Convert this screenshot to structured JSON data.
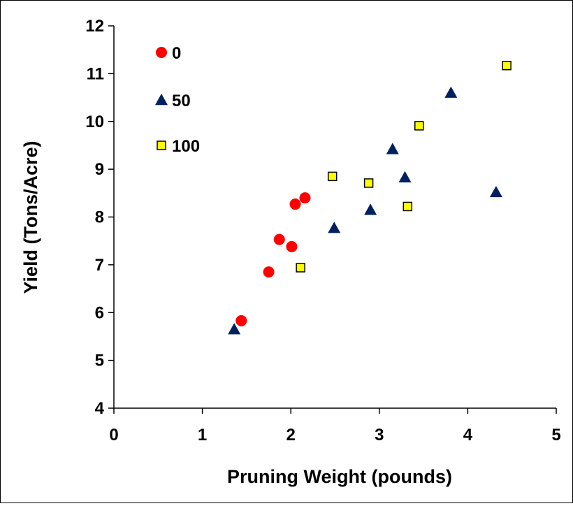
{
  "chart_data": {
    "type": "scatter",
    "title": "",
    "xlabel": "Pruning Weight (pounds)",
    "ylabel": "Yield (Tons/Acre)",
    "xlim": [
      0,
      5
    ],
    "ylim": [
      4,
      12
    ],
    "xticks": [
      "0",
      "1",
      "2",
      "3",
      "4",
      "5"
    ],
    "yticks": [
      "4",
      "5",
      "6",
      "7",
      "8",
      "9",
      "10",
      "11",
      "12"
    ],
    "grid": false,
    "legend_position": "top-left",
    "series": [
      {
        "name": "0",
        "marker": "circle",
        "color": "#ff0000",
        "points": [
          {
            "x": 1.44,
            "y": 5.83
          },
          {
            "x": 1.75,
            "y": 6.85
          },
          {
            "x": 1.87,
            "y": 7.53
          },
          {
            "x": 2.01,
            "y": 7.38
          },
          {
            "x": 2.05,
            "y": 8.27
          },
          {
            "x": 2.16,
            "y": 8.4
          }
        ]
      },
      {
        "name": "50",
        "marker": "triangle",
        "color": "#002060",
        "points": [
          {
            "x": 1.36,
            "y": 5.65
          },
          {
            "x": 2.49,
            "y": 7.77
          },
          {
            "x": 2.9,
            "y": 8.15
          },
          {
            "x": 3.15,
            "y": 9.42
          },
          {
            "x": 3.29,
            "y": 8.83
          },
          {
            "x": 3.81,
            "y": 10.6
          },
          {
            "x": 4.32,
            "y": 8.52
          }
        ]
      },
      {
        "name": "100",
        "marker": "square",
        "color": "#ffff00",
        "points": [
          {
            "x": 2.11,
            "y": 6.94
          },
          {
            "x": 2.47,
            "y": 8.85
          },
          {
            "x": 2.88,
            "y": 8.71
          },
          {
            "x": 3.32,
            "y": 8.22
          },
          {
            "x": 3.45,
            "y": 9.91
          },
          {
            "x": 4.44,
            "y": 11.17
          }
        ]
      }
    ]
  }
}
